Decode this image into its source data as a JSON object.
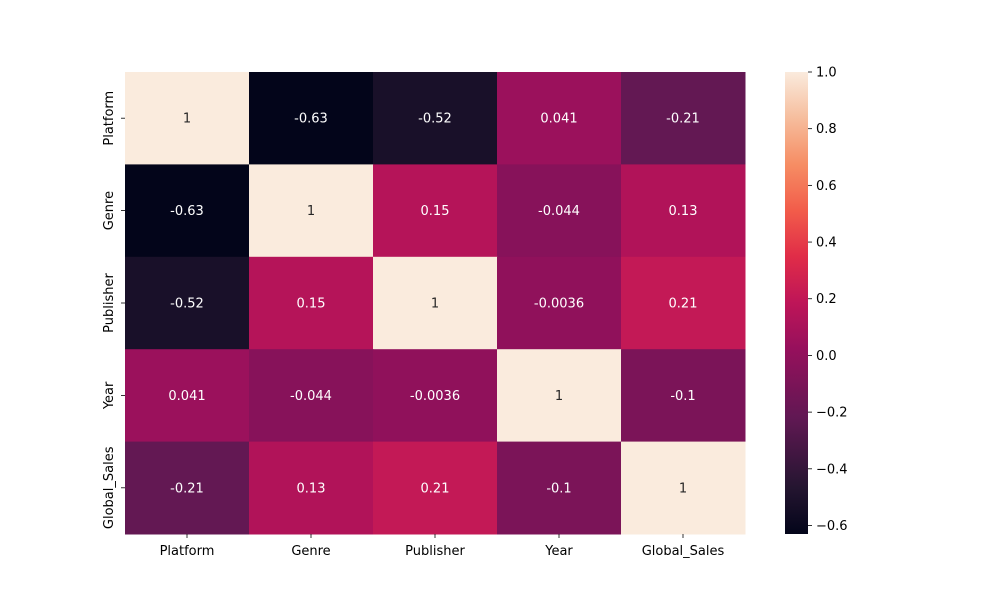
{
  "chart_data": {
    "type": "heatmap",
    "title": "",
    "xlabel": "",
    "ylabel": "",
    "x_categories": [
      "Platform",
      "Genre",
      "Publisher",
      "Year",
      "Global_Sales"
    ],
    "y_categories": [
      "Platform",
      "Genre",
      "Publisher",
      "Year",
      "Global_Sales"
    ],
    "values": [
      [
        1,
        -0.63,
        -0.52,
        0.041,
        -0.21
      ],
      [
        -0.63,
        1,
        0.15,
        -0.044,
        0.13
      ],
      [
        -0.52,
        0.15,
        1,
        -0.0036,
        0.21
      ],
      [
        0.041,
        -0.044,
        -0.0036,
        1,
        -0.1
      ],
      [
        -0.21,
        0.13,
        0.21,
        -0.1,
        1
      ]
    ],
    "annotations": [
      [
        "1",
        "-0.63",
        "-0.52",
        "0.041",
        "-0.21"
      ],
      [
        "-0.63",
        "1",
        "0.15",
        "-0.044",
        "0.13"
      ],
      [
        "-0.52",
        "0.15",
        "1",
        "-0.0036",
        "0.21"
      ],
      [
        "0.041",
        "-0.044",
        "-0.0036",
        "1",
        "-0.1"
      ],
      [
        "-0.21",
        "0.13",
        "0.21",
        "-0.1",
        "1"
      ]
    ],
    "colorbar": {
      "colormap": "rocket",
      "vmin": -0.63,
      "vmax": 1.0,
      "ticks": [
        1.0,
        0.8,
        0.6,
        0.4,
        0.2,
        0.0,
        -0.2,
        -0.4,
        -0.6
      ],
      "tick_labels": [
        "1.0",
        "0.8",
        "0.6",
        "0.4",
        "0.2",
        "0.0",
        "−0.2",
        "−0.4",
        "−0.6"
      ]
    }
  }
}
